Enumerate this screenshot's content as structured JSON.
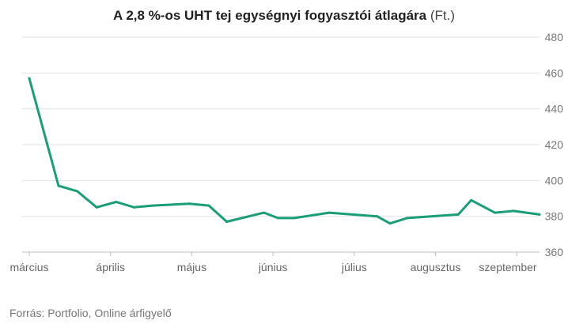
{
  "title_main": "A 2,8 %-os UHT tej egységnyi fogyasztói átlagára",
  "title_unit": "(Ft.)",
  "source": "Forrás: Portfolio, Online árfigyelő",
  "chart_data": {
    "type": "line",
    "title": "A 2,8 %-os UHT tej egységnyi fogyasztói átlagára (Ft.)",
    "xlabel": "",
    "ylabel": "",
    "ylim": [
      360,
      480
    ],
    "yticks": [
      360,
      380,
      400,
      420,
      440,
      460,
      480
    ],
    "xticks": [
      {
        "label": "március",
        "x": 0
      },
      {
        "label": "április",
        "x": 1
      },
      {
        "label": "május",
        "x": 2
      },
      {
        "label": "június",
        "x": 3
      },
      {
        "label": "július",
        "x": 4
      },
      {
        "label": "augusztus",
        "x": 5
      },
      {
        "label": "szeptember",
        "x": 6
      }
    ],
    "grid": true,
    "line_color": "#1a9e77",
    "series": [
      {
        "x": [
          0.0,
          0.36,
          0.59,
          0.83,
          1.07,
          1.29,
          1.52,
          1.97,
          2.21,
          2.43,
          2.89,
          3.06,
          3.26,
          3.69,
          4.28,
          4.44,
          4.65,
          5.28,
          5.44,
          5.73,
          5.96,
          6.28
        ],
        "y": [
          457,
          397,
          394,
          385,
          388,
          385,
          386,
          387,
          386,
          377,
          382,
          379,
          379,
          382,
          380,
          376,
          379,
          381,
          389,
          382,
          383,
          381
        ]
      }
    ]
  }
}
